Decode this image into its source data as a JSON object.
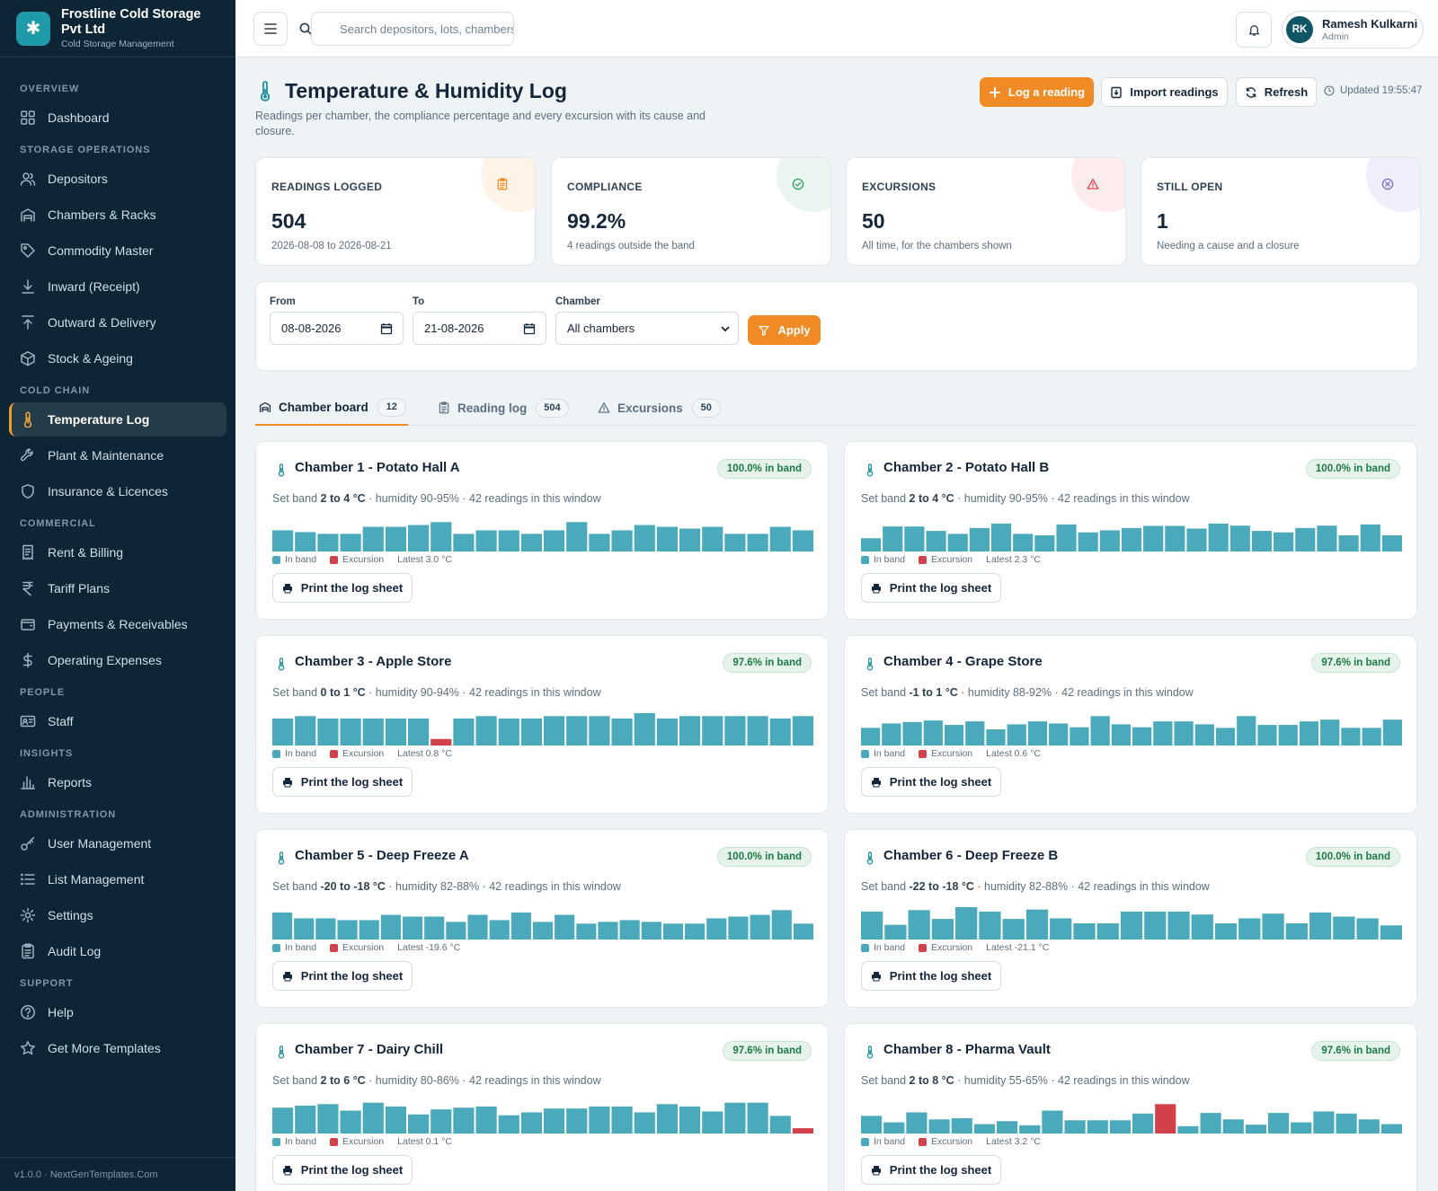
{
  "brand": {
    "name": "Frostline Cold Storage Pvt Ltd",
    "subtitle": "Cold Storage Management",
    "logo_icon": "snowflake-icon"
  },
  "sidebar": {
    "sections": [
      {
        "label": "OVERVIEW",
        "items": [
          {
            "label": "Dashboard",
            "icon": "dashboard-icon"
          }
        ]
      },
      {
        "label": "STORAGE OPERATIONS",
        "items": [
          {
            "label": "Depositors",
            "icon": "users-icon"
          },
          {
            "label": "Chambers & Racks",
            "icon": "warehouse-icon"
          },
          {
            "label": "Commodity Master",
            "icon": "tag-icon"
          },
          {
            "label": "Inward (Receipt)",
            "icon": "download-icon"
          },
          {
            "label": "Outward & Delivery",
            "icon": "upload-icon"
          },
          {
            "label": "Stock & Ageing",
            "icon": "box-icon"
          }
        ]
      },
      {
        "label": "COLD CHAIN",
        "items": [
          {
            "label": "Temperature Log",
            "icon": "thermometer-icon",
            "active": true
          },
          {
            "label": "Plant & Maintenance",
            "icon": "wrench-icon"
          },
          {
            "label": "Insurance & Licences",
            "icon": "shield-icon"
          }
        ]
      },
      {
        "label": "COMMERCIAL",
        "items": [
          {
            "label": "Rent & Billing",
            "icon": "receipt-icon"
          },
          {
            "label": "Tariff Plans",
            "icon": "rupee-icon"
          },
          {
            "label": "Payments & Receivables",
            "icon": "wallet-icon"
          },
          {
            "label": "Operating Expenses",
            "icon": "dollar-icon"
          }
        ]
      },
      {
        "label": "PEOPLE",
        "items": [
          {
            "label": "Staff",
            "icon": "id-card-icon"
          }
        ]
      },
      {
        "label": "INSIGHTS",
        "items": [
          {
            "label": "Reports",
            "icon": "bar-chart-icon"
          }
        ]
      },
      {
        "label": "ADMINISTRATION",
        "items": [
          {
            "label": "User Management",
            "icon": "key-icon"
          },
          {
            "label": "List Management",
            "icon": "list-icon"
          },
          {
            "label": "Settings",
            "icon": "gear-icon"
          },
          {
            "label": "Audit Log",
            "icon": "clipboard-icon"
          }
        ]
      },
      {
        "label": "SUPPORT",
        "items": [
          {
            "label": "Help",
            "icon": "help-icon"
          },
          {
            "label": "Get More Templates",
            "icon": "star-icon"
          }
        ]
      }
    ],
    "footer": "v1.0.0 · NextGenTemplates.Com"
  },
  "topbar": {
    "search_placeholder": "Search depositors, lots, chambers",
    "user_name": "Ramesh Kulkarni",
    "user_role": "Admin",
    "avatar_initials": "RK"
  },
  "page": {
    "title": "Temperature & Humidity Log",
    "subtitle": "Readings per chamber, the compliance percentage and every excursion with its cause and closure.",
    "log_button": "Log a reading",
    "import_button": "Import readings",
    "refresh_button": "Refresh",
    "updated": "Updated 19:55:47"
  },
  "stats": [
    {
      "label": "READINGS LOGGED",
      "value": "504",
      "note": "2026-08-08 to 2026-08-21",
      "icon": "clipboard-icon",
      "color": "#f08a24",
      "tint": "#fff3e8"
    },
    {
      "label": "COMPLIANCE",
      "value": "99.2%",
      "note": "4 readings outside the band",
      "icon": "check-circle-icon",
      "color": "#2e9a5a",
      "tint": "#e9f5ee"
    },
    {
      "label": "EXCURSIONS",
      "value": "50",
      "note": "All time, for the chambers shown",
      "icon": "warning-icon",
      "color": "#d9464a",
      "tint": "#fdecec"
    },
    {
      "label": "STILL OPEN",
      "value": "1",
      "note": "Needing a cause and a closure",
      "icon": "x-circle-icon",
      "color": "#7b6bc9",
      "tint": "#f1eefb"
    }
  ],
  "filter": {
    "from_label": "From",
    "from_value": "08-08-2026",
    "to_label": "To",
    "to_value": "21-08-2026",
    "chamber_label": "Chamber",
    "chamber_value": "All chambers",
    "apply_label": "Apply"
  },
  "tabs": [
    {
      "label": "Chamber board",
      "count": "12",
      "icon": "warehouse-icon",
      "active": true
    },
    {
      "label": "Reading log",
      "count": "504",
      "icon": "clipboard-icon"
    },
    {
      "label": "Excursions",
      "count": "50",
      "icon": "warning-icon"
    }
  ],
  "legend": {
    "in_band": "In band",
    "excursion": "Excursion"
  },
  "colors": {
    "in_band": "#4aaabb",
    "excursion": "#d2404a"
  },
  "print_label": "Print the log sheet",
  "chambers": [
    {
      "name": "Chamber 1 - Potato Hall A",
      "pill": "100.0% in band",
      "band_prefix": "Set band ",
      "band": "2 to 4 °C",
      "rest": " · humidity 90-95% · 42 readings in this window",
      "latest": "Latest 3.0 °C",
      "bars": [
        0.72,
        0.66,
        0.6,
        0.6,
        0.84,
        0.84,
        0.9,
        1.0,
        0.6,
        0.72,
        0.72,
        0.6,
        0.72,
        1.0,
        0.6,
        0.72,
        0.9,
        0.84,
        0.78,
        0.84,
        0.6,
        0.6,
        0.84,
        0.72
      ],
      "exc": []
    },
    {
      "name": "Chamber 2 - Potato Hall B",
      "pill": "100.0% in band",
      "band_prefix": "Set band ",
      "band": "2 to 4 °C",
      "rest": " · humidity 90-95% · 42 readings in this window",
      "latest": "Latest 2.3 °C",
      "bars": [
        0.45,
        0.85,
        0.85,
        0.7,
        0.6,
        0.8,
        0.95,
        0.6,
        0.55,
        0.92,
        0.65,
        0.72,
        0.8,
        0.87,
        0.87,
        0.78,
        0.95,
        0.88,
        0.7,
        0.65,
        0.8,
        0.88,
        0.55,
        0.92,
        0.55
      ],
      "exc": []
    },
    {
      "name": "Chamber 3 - Apple Store",
      "pill": "97.6% in band",
      "band_prefix": "Set band ",
      "band": "0 to 1 °C",
      "rest": " · humidity 90-94% · 42 readings in this window",
      "latest": "Latest 0.8 °C",
      "bars": [
        0.92,
        1.0,
        0.92,
        0.92,
        0.92,
        0.92,
        0.92,
        0.22,
        0.92,
        1.0,
        0.92,
        0.92,
        1.0,
        1.0,
        1.0,
        0.92,
        1.1,
        0.92,
        1.0,
        1.0,
        1.0,
        1.0,
        0.92,
        1.0
      ],
      "exc": [
        7
      ]
    },
    {
      "name": "Chamber 4 - Grape Store",
      "pill": "97.6% in band",
      "band_prefix": "Set band ",
      "band": "-1 to 1 °C",
      "rest": " · humidity 88-92% · 42 readings in this window",
      "latest": "Latest 0.6 °C",
      "bars": [
        0.6,
        0.75,
        0.8,
        0.85,
        0.7,
        0.82,
        0.55,
        0.72,
        0.82,
        0.75,
        0.62,
        1.0,
        0.72,
        0.62,
        0.82,
        0.82,
        0.72,
        0.6,
        1.0,
        0.7,
        0.7,
        0.82,
        0.88,
        0.6,
        0.6,
        0.88
      ],
      "exc": []
    },
    {
      "name": "Chamber 5 - Deep Freeze A",
      "pill": "100.0% in band",
      "band_prefix": "Set band ",
      "band": "-20 to -18 °C",
      "rest": " · humidity 82-88% · 42 readings in this window",
      "latest": "Latest -19.6 °C",
      "bars": [
        0.92,
        0.72,
        0.72,
        0.66,
        0.66,
        0.84,
        0.78,
        0.78,
        0.6,
        0.84,
        0.66,
        0.92,
        0.6,
        0.84,
        0.54,
        0.6,
        0.66,
        0.6,
        0.54,
        0.54,
        0.72,
        0.78,
        0.84,
        1.0,
        0.54
      ],
      "exc": []
    },
    {
      "name": "Chamber 6 - Deep Freeze B",
      "pill": "100.0% in band",
      "band_prefix": "Set band ",
      "band": "-22 to -18 °C",
      "rest": " · humidity 82-88% · 42 readings in this window",
      "latest": "Latest -21.1 °C",
      "bars": [
        0.95,
        0.5,
        1.0,
        0.7,
        1.1,
        0.95,
        0.7,
        1.02,
        0.72,
        0.55,
        0.55,
        0.95,
        0.95,
        0.95,
        0.85,
        0.55,
        0.72,
        0.88,
        0.55,
        0.92,
        0.78,
        0.72,
        0.48
      ],
      "exc": []
    },
    {
      "name": "Chamber 7 - Dairy Chill",
      "pill": "97.6% in band",
      "band_prefix": "Set band ",
      "band": "2 to 6 °C",
      "rest": " · humidity 80-86% · 42 readings in this window",
      "latest": "Latest 0.1 °C",
      "bars": [
        0.88,
        0.95,
        1.0,
        0.78,
        1.05,
        0.92,
        0.65,
        0.82,
        0.88,
        0.92,
        0.62,
        0.72,
        0.85,
        0.85,
        0.92,
        0.92,
        0.72,
        1.0,
        0.92,
        0.75,
        1.05,
        1.05,
        0.6,
        0.18
      ],
      "exc": [
        23
      ]
    },
    {
      "name": "Chamber 8 - Pharma Vault",
      "pill": "97.6% in band",
      "band_prefix": "Set band ",
      "band": "2 to 8 °C",
      "rest": " · humidity 55-65% · 42 readings in this window",
      "latest": "Latest 3.2 °C",
      "bars": [
        0.6,
        0.38,
        0.72,
        0.48,
        0.52,
        0.32,
        0.42,
        0.28,
        0.78,
        0.45,
        0.45,
        0.45,
        0.68,
        1.0,
        0.25,
        0.7,
        0.48,
        0.3,
        0.7,
        0.38,
        0.75,
        0.68,
        0.48,
        0.32
      ],
      "exc": [
        13
      ]
    }
  ]
}
